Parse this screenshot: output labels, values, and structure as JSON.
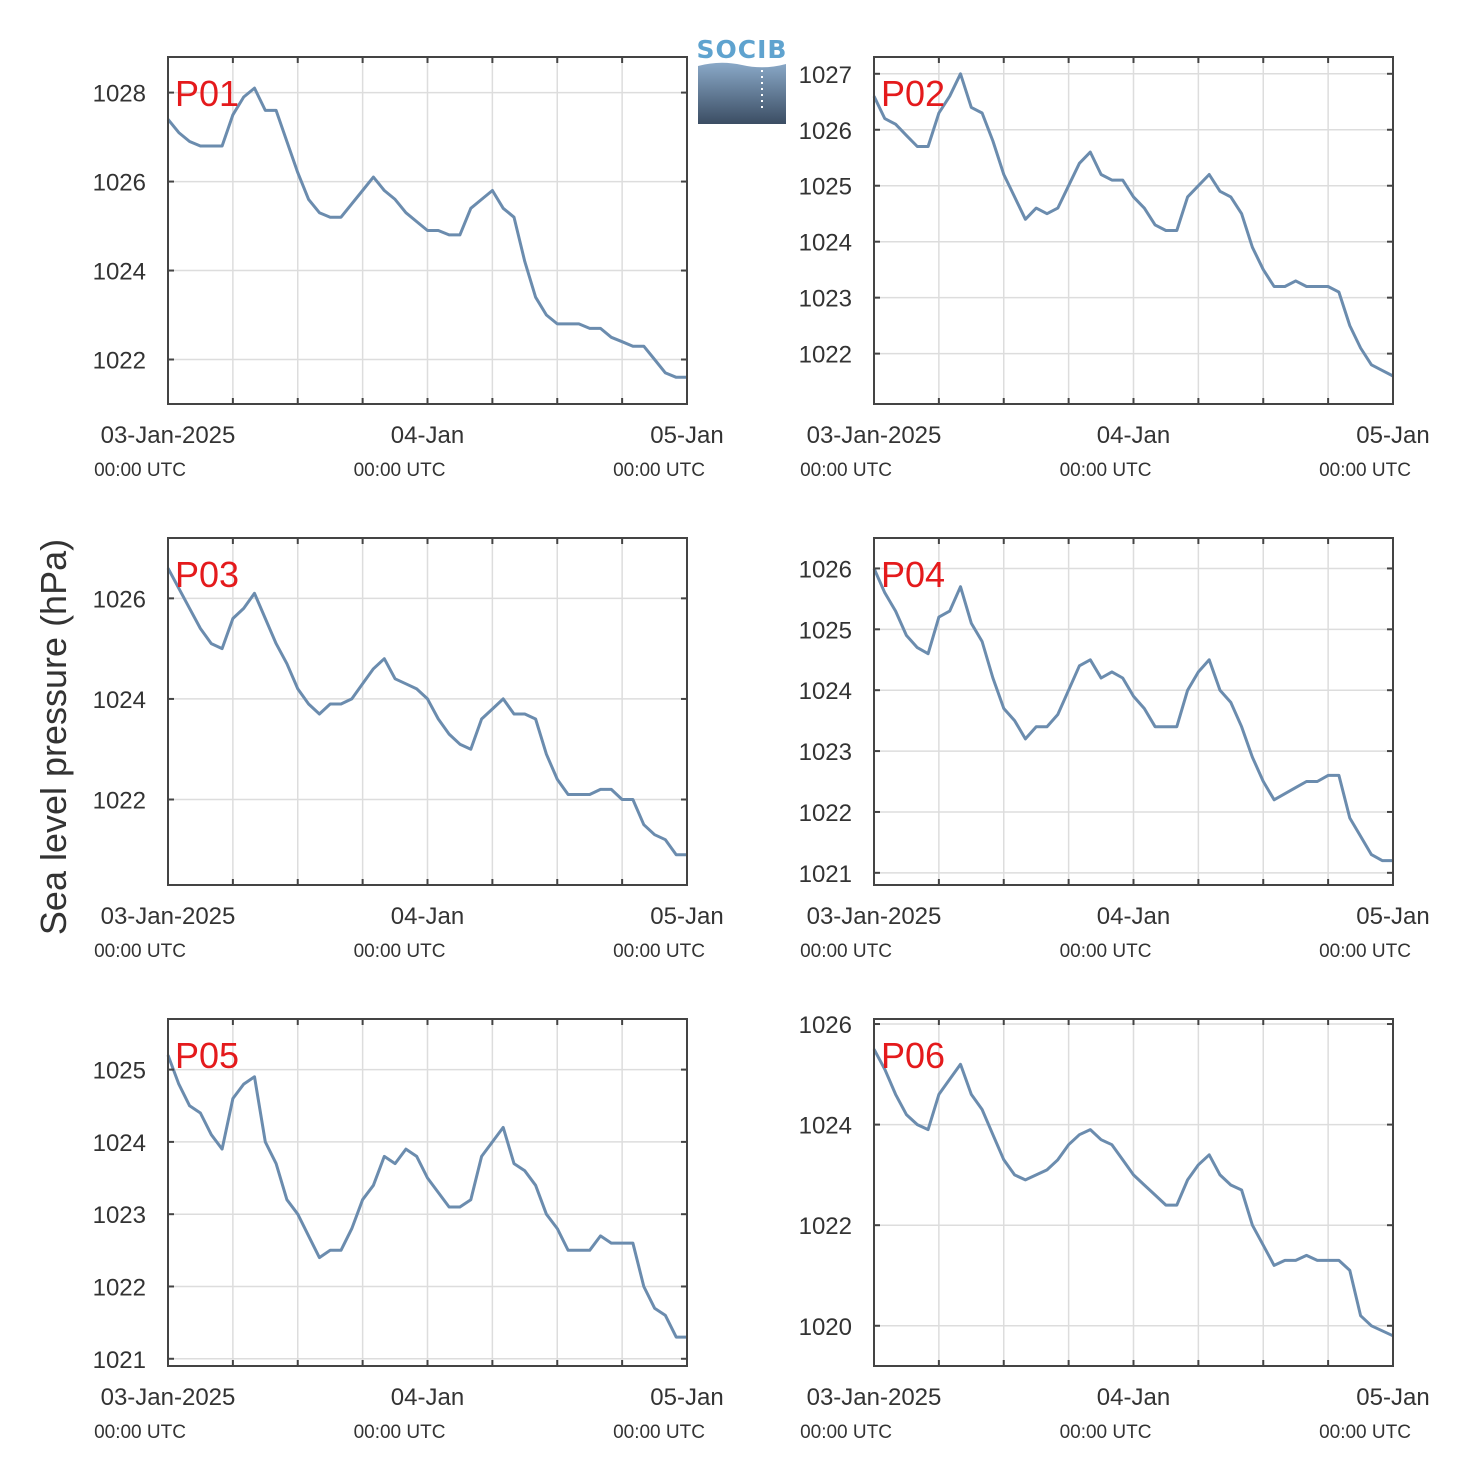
{
  "figure": {
    "ylabel": "Sea level pressure (hPa)",
    "logo_text": "SOCIB",
    "line_color": "#6b8cae",
    "label_color": "#e41a1c",
    "grid_color": "#dddddd",
    "axis_color": "#444444"
  },
  "chart_data": [
    {
      "type": "line",
      "label": "P01",
      "ylim": [
        1021.0,
        1028.8
      ],
      "yticks": [
        1022,
        1024,
        1026,
        1028
      ],
      "xlim": [
        0,
        48
      ],
      "grid": true,
      "xticks": [
        {
          "t": 0,
          "main": "03-Jan-2025",
          "sub": "00:00 UTC"
        },
        {
          "t": 24,
          "main": "04-Jan",
          "sub": "00:00 UTC"
        },
        {
          "t": 48,
          "main": "05-Jan",
          "sub": "00:00 UTC"
        }
      ],
      "x": [
        0,
        1,
        2,
        3,
        4,
        5,
        6,
        7,
        8,
        9,
        10,
        11,
        12,
        13,
        14,
        15,
        16,
        17,
        18,
        19,
        20,
        21,
        22,
        23,
        24,
        25,
        26,
        27,
        28,
        29,
        30,
        31,
        32,
        33,
        34,
        35,
        36,
        37,
        38,
        39,
        40,
        41,
        42,
        43,
        44,
        45,
        46,
        47,
        48
      ],
      "y": [
        1027.4,
        1027.1,
        1026.9,
        1026.8,
        1026.8,
        1026.8,
        1027.5,
        1027.9,
        1028.1,
        1027.6,
        1027.6,
        1026.9,
        1026.2,
        1025.6,
        1025.3,
        1025.2,
        1025.2,
        1025.5,
        1025.8,
        1026.1,
        1025.8,
        1025.6,
        1025.3,
        1025.1,
        1024.9,
        1024.9,
        1024.8,
        1024.8,
        1025.4,
        1025.6,
        1025.8,
        1025.4,
        1025.2,
        1024.2,
        1023.4,
        1023.0,
        1022.8,
        1022.8,
        1022.8,
        1022.7,
        1022.7,
        1022.5,
        1022.4,
        1022.3,
        1022.3,
        1022.0,
        1021.7,
        1021.6,
        1021.6
      ]
    },
    {
      "type": "line",
      "label": "P02",
      "ylim": [
        1021.1,
        1027.3
      ],
      "yticks": [
        1022,
        1023,
        1024,
        1025,
        1026,
        1027
      ],
      "xlim": [
        0,
        48
      ],
      "grid": true,
      "xticks": [
        {
          "t": 0,
          "main": "03-Jan-2025",
          "sub": "00:00 UTC"
        },
        {
          "t": 24,
          "main": "04-Jan",
          "sub": "00:00 UTC"
        },
        {
          "t": 48,
          "main": "05-Jan",
          "sub": "00:00 UTC"
        }
      ],
      "x": [
        0,
        1,
        2,
        3,
        4,
        5,
        6,
        7,
        8,
        9,
        10,
        11,
        12,
        13,
        14,
        15,
        16,
        17,
        18,
        19,
        20,
        21,
        22,
        23,
        24,
        25,
        26,
        27,
        28,
        29,
        30,
        31,
        32,
        33,
        34,
        35,
        36,
        37,
        38,
        39,
        40,
        41,
        42,
        43,
        44,
        45,
        46,
        47,
        48
      ],
      "y": [
        1026.6,
        1026.2,
        1026.1,
        1025.9,
        1025.7,
        1025.7,
        1026.3,
        1026.6,
        1027.0,
        1026.4,
        1026.3,
        1025.8,
        1025.2,
        1024.8,
        1024.4,
        1024.6,
        1024.5,
        1024.6,
        1025.0,
        1025.4,
        1025.6,
        1025.2,
        1025.1,
        1025.1,
        1024.8,
        1024.6,
        1024.3,
        1024.2,
        1024.2,
        1024.8,
        1025.0,
        1025.2,
        1024.9,
        1024.8,
        1024.5,
        1023.9,
        1023.5,
        1023.2,
        1023.2,
        1023.3,
        1023.2,
        1023.2,
        1023.2,
        1023.1,
        1022.5,
        1022.1,
        1021.8,
        1021.7,
        1021.6
      ]
    },
    {
      "type": "line",
      "label": "P03",
      "ylim": [
        1020.3,
        1027.2
      ],
      "yticks": [
        1022,
        1024,
        1026
      ],
      "xlim": [
        0,
        48
      ],
      "grid": true,
      "xticks": [
        {
          "t": 0,
          "main": "03-Jan-2025",
          "sub": "00:00 UTC"
        },
        {
          "t": 24,
          "main": "04-Jan",
          "sub": "00:00 UTC"
        },
        {
          "t": 48,
          "main": "05-Jan",
          "sub": "00:00 UTC"
        }
      ],
      "x": [
        0,
        1,
        2,
        3,
        4,
        5,
        6,
        7,
        8,
        9,
        10,
        11,
        12,
        13,
        14,
        15,
        16,
        17,
        18,
        19,
        20,
        21,
        22,
        23,
        24,
        25,
        26,
        27,
        28,
        29,
        30,
        31,
        32,
        33,
        34,
        35,
        36,
        37,
        38,
        39,
        40,
        41,
        42,
        43,
        44,
        45,
        46,
        47,
        48
      ],
      "y": [
        1026.6,
        1026.2,
        1025.8,
        1025.4,
        1025.1,
        1025.0,
        1025.6,
        1025.8,
        1026.1,
        1025.6,
        1025.1,
        1024.7,
        1024.2,
        1023.9,
        1023.7,
        1023.9,
        1023.9,
        1024.0,
        1024.3,
        1024.6,
        1024.8,
        1024.4,
        1024.3,
        1024.2,
        1024.0,
        1023.6,
        1023.3,
        1023.1,
        1023.0,
        1023.6,
        1023.8,
        1024.0,
        1023.7,
        1023.7,
        1023.6,
        1022.9,
        1022.4,
        1022.1,
        1022.1,
        1022.1,
        1022.2,
        1022.2,
        1022.0,
        1022.0,
        1021.5,
        1021.3,
        1021.2,
        1020.9,
        1020.9
      ]
    },
    {
      "type": "line",
      "label": "P04",
      "ylim": [
        1020.8,
        1026.5
      ],
      "yticks": [
        1021,
        1022,
        1023,
        1024,
        1025,
        1026
      ],
      "xlim": [
        0,
        48
      ],
      "grid": true,
      "xticks": [
        {
          "t": 0,
          "main": "03-Jan-2025",
          "sub": "00:00 UTC"
        },
        {
          "t": 24,
          "main": "04-Jan",
          "sub": "00:00 UTC"
        },
        {
          "t": 48,
          "main": "05-Jan",
          "sub": "00:00 UTC"
        }
      ],
      "x": [
        0,
        1,
        2,
        3,
        4,
        5,
        6,
        7,
        8,
        9,
        10,
        11,
        12,
        13,
        14,
        15,
        16,
        17,
        18,
        19,
        20,
        21,
        22,
        23,
        24,
        25,
        26,
        27,
        28,
        29,
        30,
        31,
        32,
        33,
        34,
        35,
        36,
        37,
        38,
        39,
        40,
        41,
        42,
        43,
        44,
        45,
        46,
        47,
        48
      ],
      "y": [
        1026.0,
        1025.6,
        1025.3,
        1024.9,
        1024.7,
        1024.6,
        1025.2,
        1025.3,
        1025.7,
        1025.1,
        1024.8,
        1024.2,
        1023.7,
        1023.5,
        1023.2,
        1023.4,
        1023.4,
        1023.6,
        1024.0,
        1024.4,
        1024.5,
        1024.2,
        1024.3,
        1024.2,
        1023.9,
        1023.7,
        1023.4,
        1023.4,
        1023.4,
        1024.0,
        1024.3,
        1024.5,
        1024.0,
        1023.8,
        1023.4,
        1022.9,
        1022.5,
        1022.2,
        1022.3,
        1022.4,
        1022.5,
        1022.5,
        1022.6,
        1022.6,
        1021.9,
        1021.6,
        1021.3,
        1021.2,
        1021.2
      ]
    },
    {
      "type": "line",
      "label": "P05",
      "ylim": [
        1020.9,
        1025.7
      ],
      "yticks": [
        1021,
        1022,
        1023,
        1024,
        1025
      ],
      "xlim": [
        0,
        48
      ],
      "grid": true,
      "xticks": [
        {
          "t": 0,
          "main": "03-Jan-2025",
          "sub": "00:00 UTC"
        },
        {
          "t": 24,
          "main": "04-Jan",
          "sub": "00:00 UTC"
        },
        {
          "t": 48,
          "main": "05-Jan",
          "sub": "00:00 UTC"
        }
      ],
      "x": [
        0,
        1,
        2,
        3,
        4,
        5,
        6,
        7,
        8,
        9,
        10,
        11,
        12,
        13,
        14,
        15,
        16,
        17,
        18,
        19,
        20,
        21,
        22,
        23,
        24,
        25,
        26,
        27,
        28,
        29,
        30,
        31,
        32,
        33,
        34,
        35,
        36,
        37,
        38,
        39,
        40,
        41,
        42,
        43,
        44,
        45,
        46,
        47,
        48
      ],
      "y": [
        1025.2,
        1024.8,
        1024.5,
        1024.4,
        1024.1,
        1023.9,
        1024.6,
        1024.8,
        1024.9,
        1024.0,
        1023.7,
        1023.2,
        1023.0,
        1022.7,
        1022.4,
        1022.5,
        1022.5,
        1022.8,
        1023.2,
        1023.4,
        1023.8,
        1023.7,
        1023.9,
        1023.8,
        1023.5,
        1023.3,
        1023.1,
        1023.1,
        1023.2,
        1023.8,
        1024.0,
        1024.2,
        1023.7,
        1023.6,
        1023.4,
        1023.0,
        1022.8,
        1022.5,
        1022.5,
        1022.5,
        1022.7,
        1022.6,
        1022.6,
        1022.6,
        1022.0,
        1021.7,
        1021.6,
        1021.3,
        1021.3
      ]
    },
    {
      "type": "line",
      "label": "P06",
      "ylim": [
        1019.2,
        1026.1
      ],
      "yticks": [
        1020,
        1022,
        1024,
        1026
      ],
      "xlim": [
        0,
        48
      ],
      "grid": true,
      "xticks": [
        {
          "t": 0,
          "main": "03-Jan-2025",
          "sub": "00:00 UTC"
        },
        {
          "t": 24,
          "main": "04-Jan",
          "sub": "00:00 UTC"
        },
        {
          "t": 48,
          "main": "05-Jan",
          "sub": "00:00 UTC"
        }
      ],
      "x": [
        0,
        1,
        2,
        3,
        4,
        5,
        6,
        7,
        8,
        9,
        10,
        11,
        12,
        13,
        14,
        15,
        16,
        17,
        18,
        19,
        20,
        21,
        22,
        23,
        24,
        25,
        26,
        27,
        28,
        29,
        30,
        31,
        32,
        33,
        34,
        35,
        36,
        37,
        38,
        39,
        40,
        41,
        42,
        43,
        44,
        45,
        46,
        47,
        48
      ],
      "y": [
        1025.5,
        1025.1,
        1024.6,
        1024.2,
        1024.0,
        1023.9,
        1024.6,
        1024.9,
        1025.2,
        1024.6,
        1024.3,
        1023.8,
        1023.3,
        1023.0,
        1022.9,
        1023.0,
        1023.1,
        1023.3,
        1023.6,
        1023.8,
        1023.9,
        1023.7,
        1023.6,
        1023.3,
        1023.0,
        1022.8,
        1022.6,
        1022.4,
        1022.4,
        1022.9,
        1023.2,
        1023.4,
        1023.0,
        1022.8,
        1022.7,
        1022.0,
        1021.6,
        1021.2,
        1021.3,
        1021.3,
        1021.4,
        1021.3,
        1021.3,
        1021.3,
        1021.1,
        1020.2,
        1020.0,
        1019.9,
        1019.8
      ]
    }
  ]
}
